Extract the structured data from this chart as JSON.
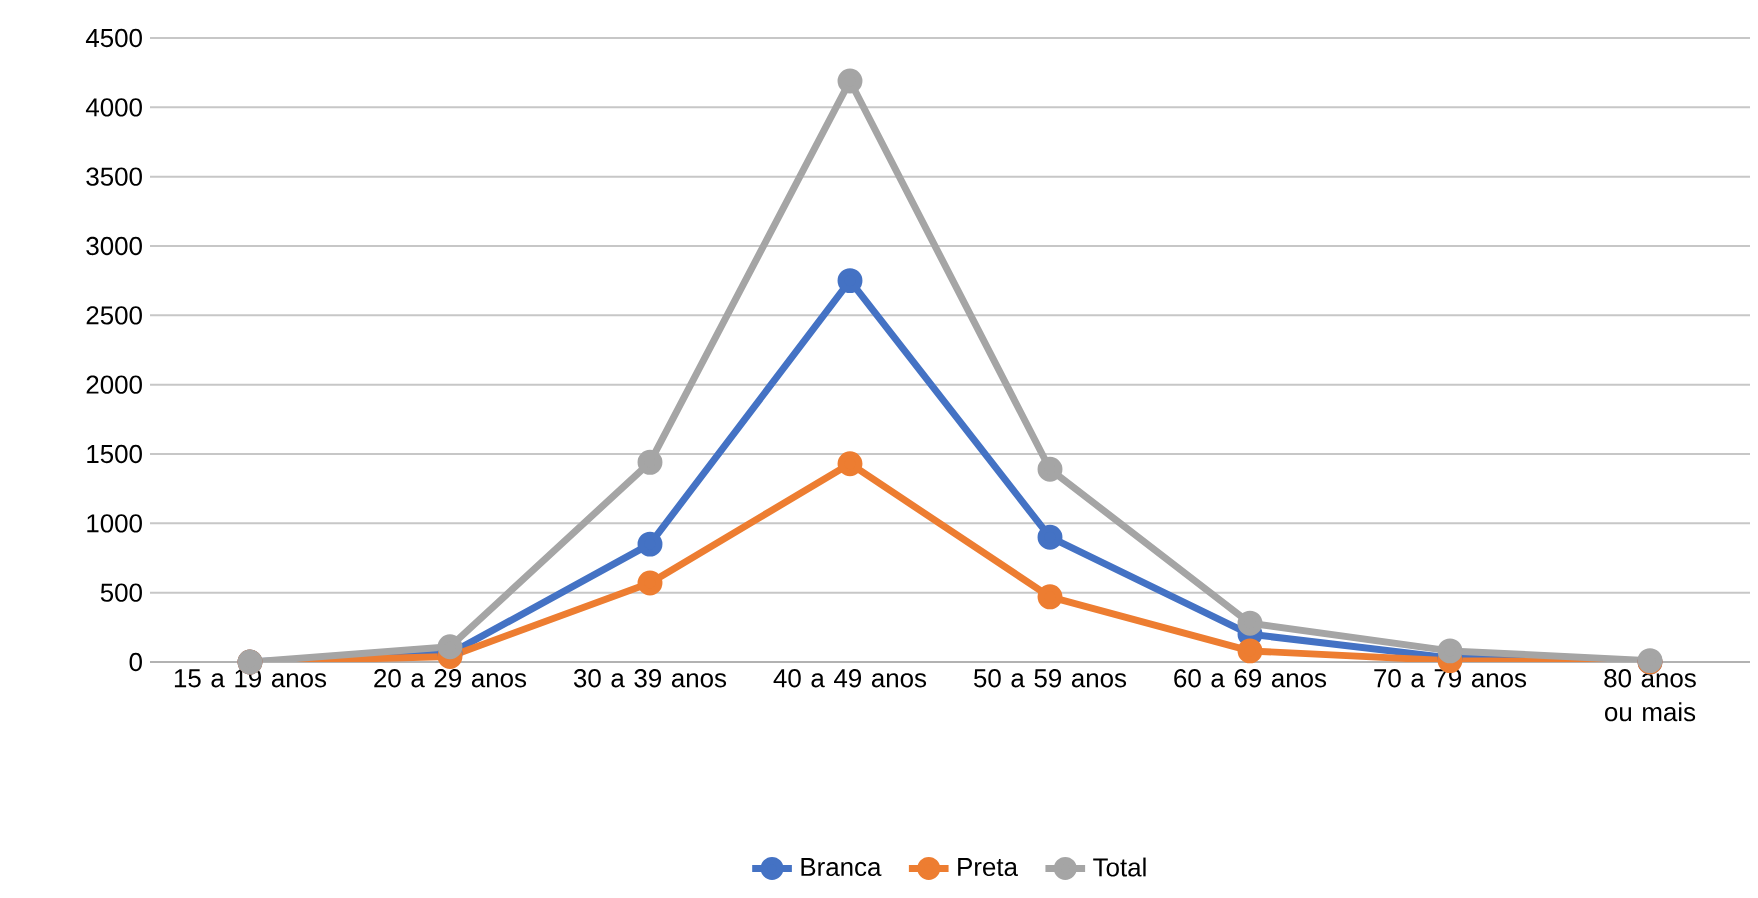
{
  "chart_data": {
    "type": "line",
    "categories": [
      "15 a 19 anos",
      "20 a 29 anos",
      "30 a 39 anos",
      "40 a 49 anos",
      "50 a 59 anos",
      "60 a 69 anos",
      "70 a 79 anos",
      "80 anos ou mais"
    ],
    "series": [
      {
        "name": "Branca",
        "color": "#4472c4",
        "values": [
          0,
          60,
          850,
          2750,
          900,
          200,
          30,
          0
        ]
      },
      {
        "name": "Preta",
        "color": "#ed7d31",
        "values": [
          0,
          40,
          570,
          1430,
          470,
          80,
          10,
          0
        ]
      },
      {
        "name": "Total",
        "color": "#a5a5a5",
        "values": [
          0,
          110,
          1440,
          4190,
          1390,
          280,
          80,
          10
        ]
      }
    ],
    "ylim": [
      0,
      4500
    ],
    "yticks": [
      0,
      500,
      1000,
      1500,
      2000,
      2500,
      3000,
      3500,
      4000,
      4500
    ],
    "grid": "y",
    "legend": "bottom",
    "marker": "circle",
    "line_style": "solid"
  }
}
